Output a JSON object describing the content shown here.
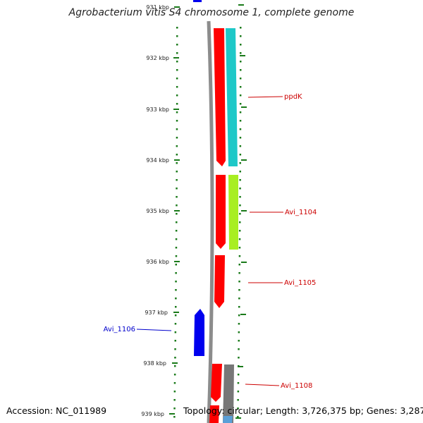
{
  "title": "Agrobacterium vitis S4 chromosome 1, complete genome",
  "accession": "Accession: NC_011989",
  "topology_line": "Topology: circular; Length: 3,726,375 bp; Genes: 3,287",
  "ticks": [
    "931 kbp",
    "932 kbp",
    "933 kbp",
    "934 kbp",
    "935 kbp",
    "936 kbp",
    "937 kbp",
    "938 kbp",
    "939 kbp"
  ],
  "colors": {
    "backbone": "#8c8c8c",
    "tick": "#1a7a1a",
    "forward_cds": "#ff0000",
    "reverse_cds": "#0000ee",
    "cyan_feature": "#1ec8c8",
    "green_feature": "#a8ee22",
    "gray_feature": "#777777",
    "light_blue_feature": "#5aa0d8"
  },
  "gene_labels": [
    {
      "name": "ppdK",
      "side": "right",
      "color": "#cc0000"
    },
    {
      "name": "Avi_1104",
      "side": "right",
      "color": "#cc0000"
    },
    {
      "name": "Avi_1105",
      "side": "right",
      "color": "#cc0000"
    },
    {
      "name": "Avi_1106",
      "side": "left",
      "color": "#0000cc"
    },
    {
      "name": "Avi_1108",
      "side": "right",
      "color": "#cc0000"
    }
  ]
}
